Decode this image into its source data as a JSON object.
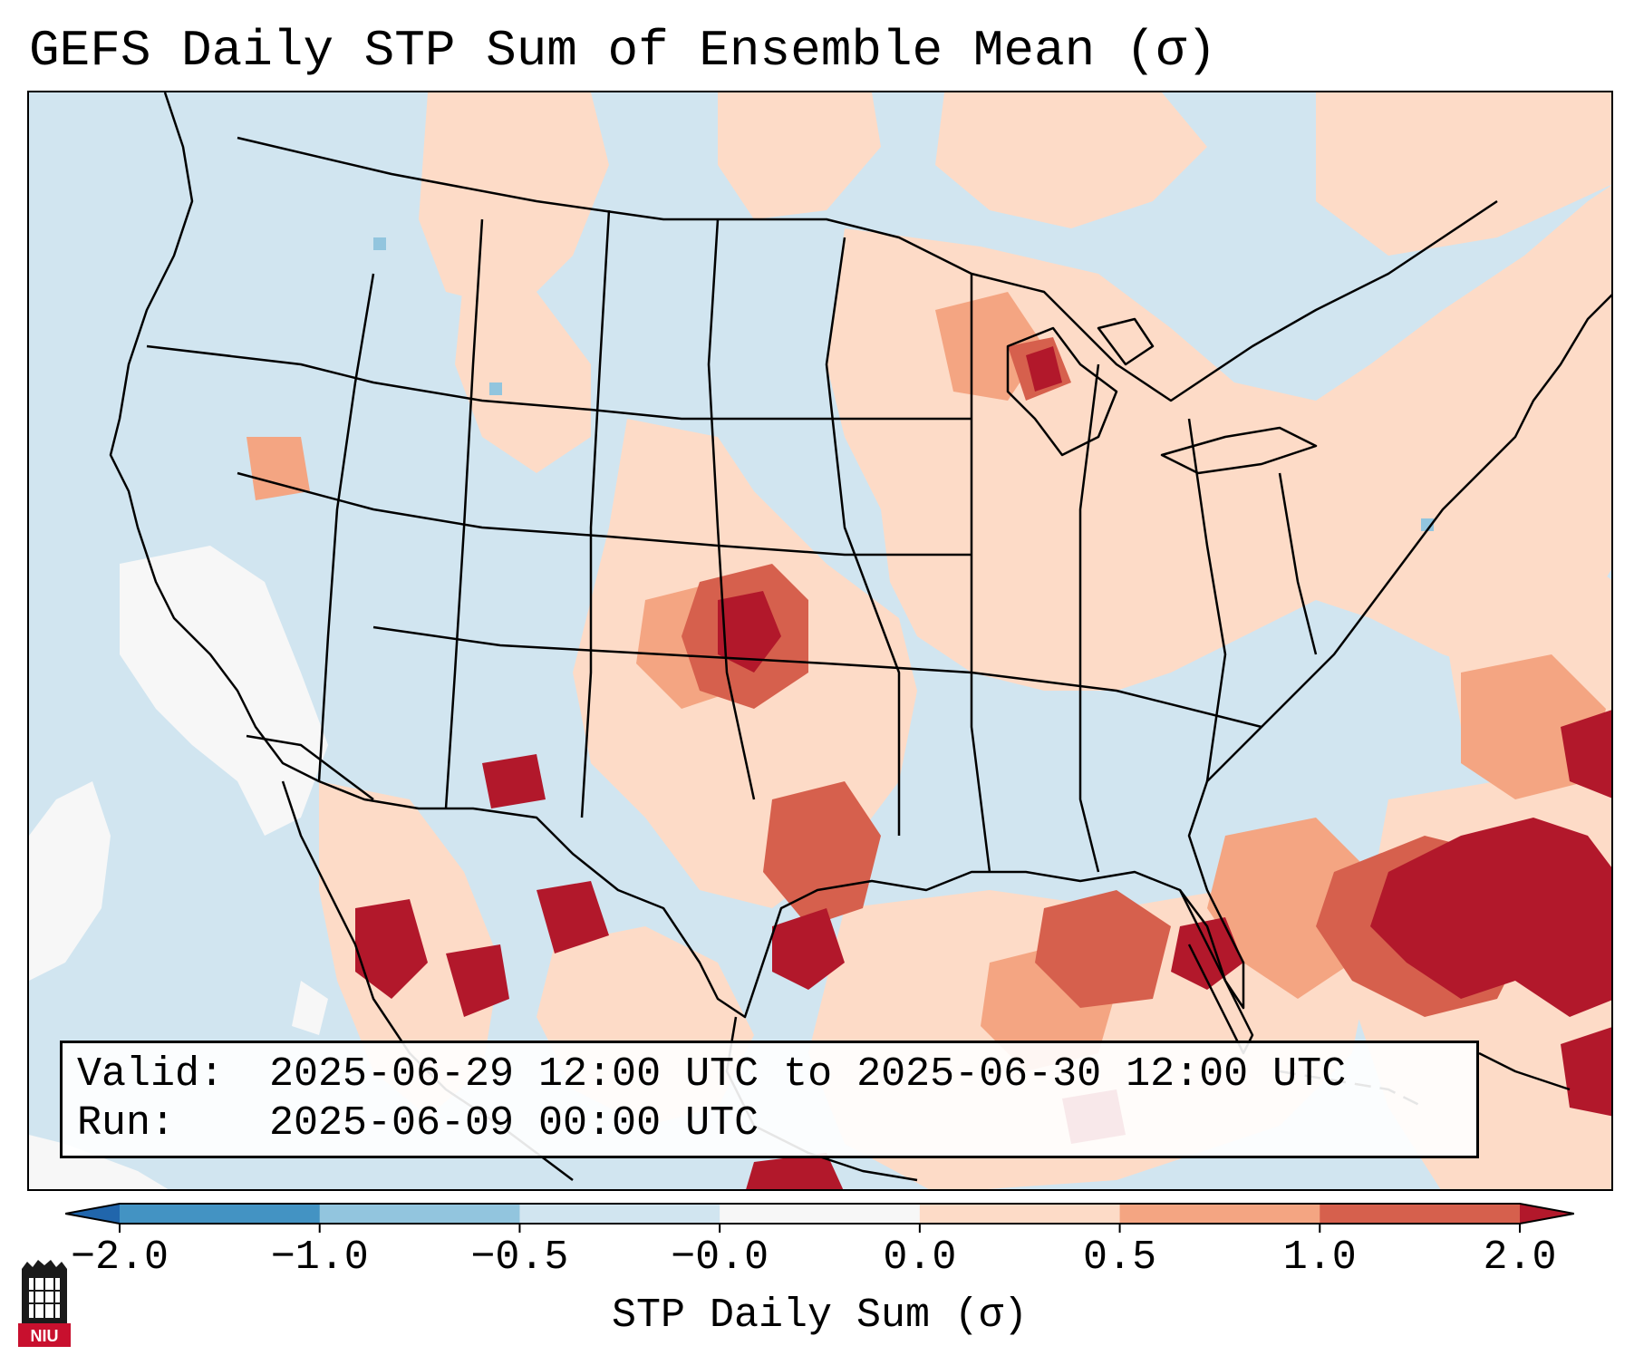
{
  "title": "GEFS Daily STP Sum of Ensemble Mean (σ)",
  "map": {
    "region": "Continental United States, Mexico, Gulf of Mexico",
    "variable": "STP daily sum anomaly (σ)",
    "hotspots": [
      {
        "area": "Kansas / Oklahoma",
        "level": "1.0 to 2.0+"
      },
      {
        "area": "Gulf of Mexico",
        "level": "1.0 to 2.0+"
      },
      {
        "area": "Western Atlantic off Southeast US",
        "level": "2.0+"
      },
      {
        "area": "Northern Mexico",
        "level": "2.0+"
      },
      {
        "area": "Great Lakes / Upper Midwest",
        "level": "0.0 to 1.0"
      }
    ]
  },
  "info": {
    "valid_label": "Valid:",
    "valid_value": "2025-06-29 12:00 UTC to 2025-06-30 12:00 UTC",
    "run_label": "Run:",
    "run_value": "2025-06-09 00:00 UTC"
  },
  "colorbar": {
    "label": "STP Daily Sum (σ)",
    "tick_labels": [
      "−2.0",
      "−1.0",
      "−0.5",
      "−0.0",
      "0.0",
      "0.5",
      "1.0",
      "2.0"
    ],
    "bin_colors": [
      "#2166ac",
      "#4393c3",
      "#92c5de",
      "#d1e5f0",
      "#f7f7f7",
      "#fddbc7",
      "#f4a582",
      "#d6604d",
      "#b2182b"
    ],
    "under_color": "#2166ac",
    "over_color": "#b2182b"
  },
  "logo": {
    "text": "NIU",
    "color": "#c8102e"
  }
}
